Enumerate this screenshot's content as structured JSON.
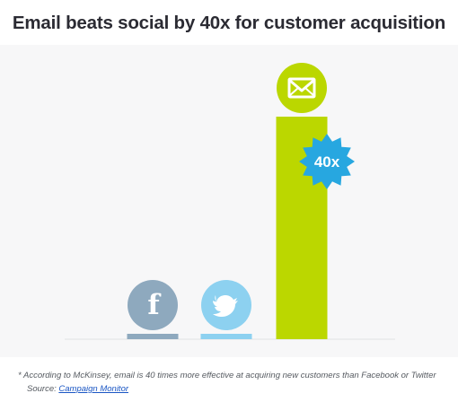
{
  "chart_data": {
    "type": "bar",
    "title": "Email beats social by 40x for customer acquisition",
    "categories": [
      "Facebook",
      "Twitter",
      "Email"
    ],
    "values": [
      1,
      1,
      40
    ],
    "ylim": [
      0,
      40
    ],
    "xlabel": "",
    "ylabel": "",
    "grid": false,
    "legend": "none",
    "data_labels": [
      "",
      "",
      "40x"
    ],
    "icons": [
      "facebook-icon",
      "twitter-icon",
      "email-icon"
    ],
    "colors": [
      "#8ea9be",
      "#8dd1f0",
      "#bbd700"
    ],
    "badge_color": "#27a7e0"
  },
  "footnote": "* According to McKinsey, email is 40 times more effective at acquiring new customers than Facebook or Twitter",
  "source_label": "Source:",
  "source_link": "Campaign Monitor"
}
